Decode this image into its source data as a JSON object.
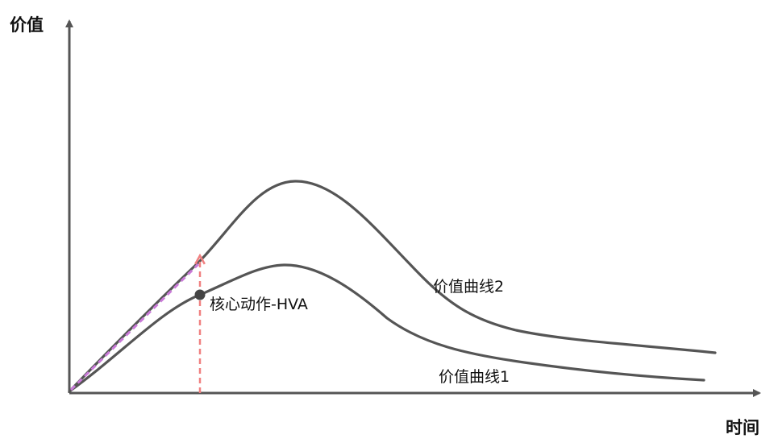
{
  "y_axis": {
    "label": "价值"
  },
  "x_axis": {
    "label": "时间"
  },
  "curves": [
    {
      "label": "价值曲线1"
    },
    {
      "label": "价值曲线2"
    }
  ],
  "key_point": {
    "label": "核心动作-HVA"
  },
  "colors": {
    "axis": "#555555",
    "curve": "#555555",
    "text": "#111111",
    "pink_arrow": "#f08080",
    "purple_dash": "#c97ad8"
  }
}
